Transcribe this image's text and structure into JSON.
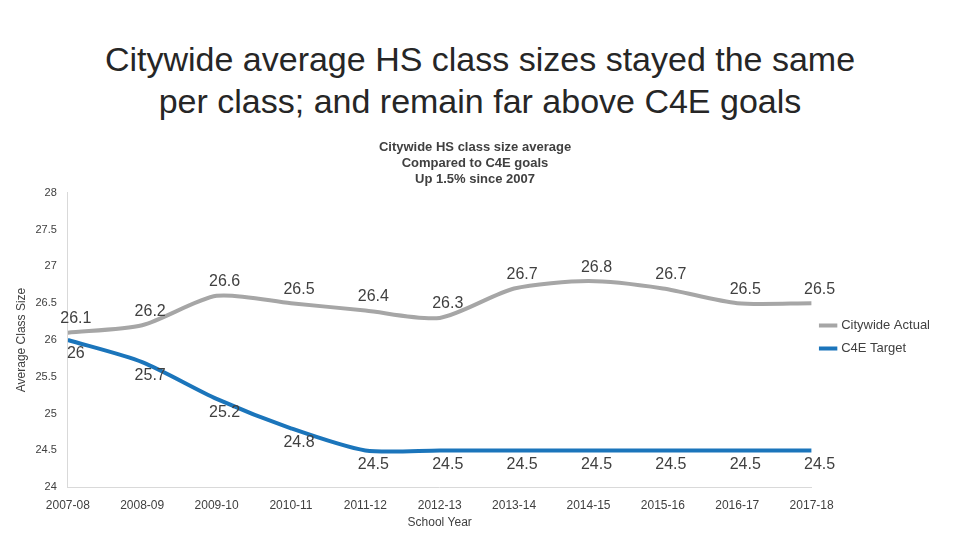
{
  "chart_data": {
    "type": "line",
    "title": "Citywide average HS class sizes stayed the same per class; and remain far above C4E goals",
    "subtitle": [
      "Citywide HS class size average",
      "Compared to C4E goals",
      "Up 1.5% since 2007"
    ],
    "x_label": "School Year",
    "y_label": "Average Class Size",
    "categories": [
      "2007-08",
      "2008-09",
      "2009-10",
      "2010-11",
      "2011-12",
      "2012-13",
      "2013-14",
      "2014-15",
      "2015-16",
      "2016-17",
      "2017-18"
    ],
    "series": [
      {
        "name": "Citywide Actual",
        "color": "#a6a6a6",
        "values": [
          26.1,
          26.2,
          26.6,
          26.5,
          26.4,
          26.3,
          26.7,
          26.8,
          26.7,
          26.5,
          26.5
        ]
      },
      {
        "name": "C4E Target",
        "color": "#1b75bb",
        "values": [
          26,
          25.7,
          25.2,
          24.8,
          24.5,
          24.5,
          24.5,
          24.5,
          24.5,
          24.5,
          24.5
        ]
      }
    ],
    "ylim": [
      24,
      28
    ],
    "yticks": [
      24,
      24.5,
      25,
      25.5,
      26,
      26.5,
      27,
      27.5,
      28
    ],
    "grid": false,
    "legend": "right",
    "data_labels": true
  }
}
